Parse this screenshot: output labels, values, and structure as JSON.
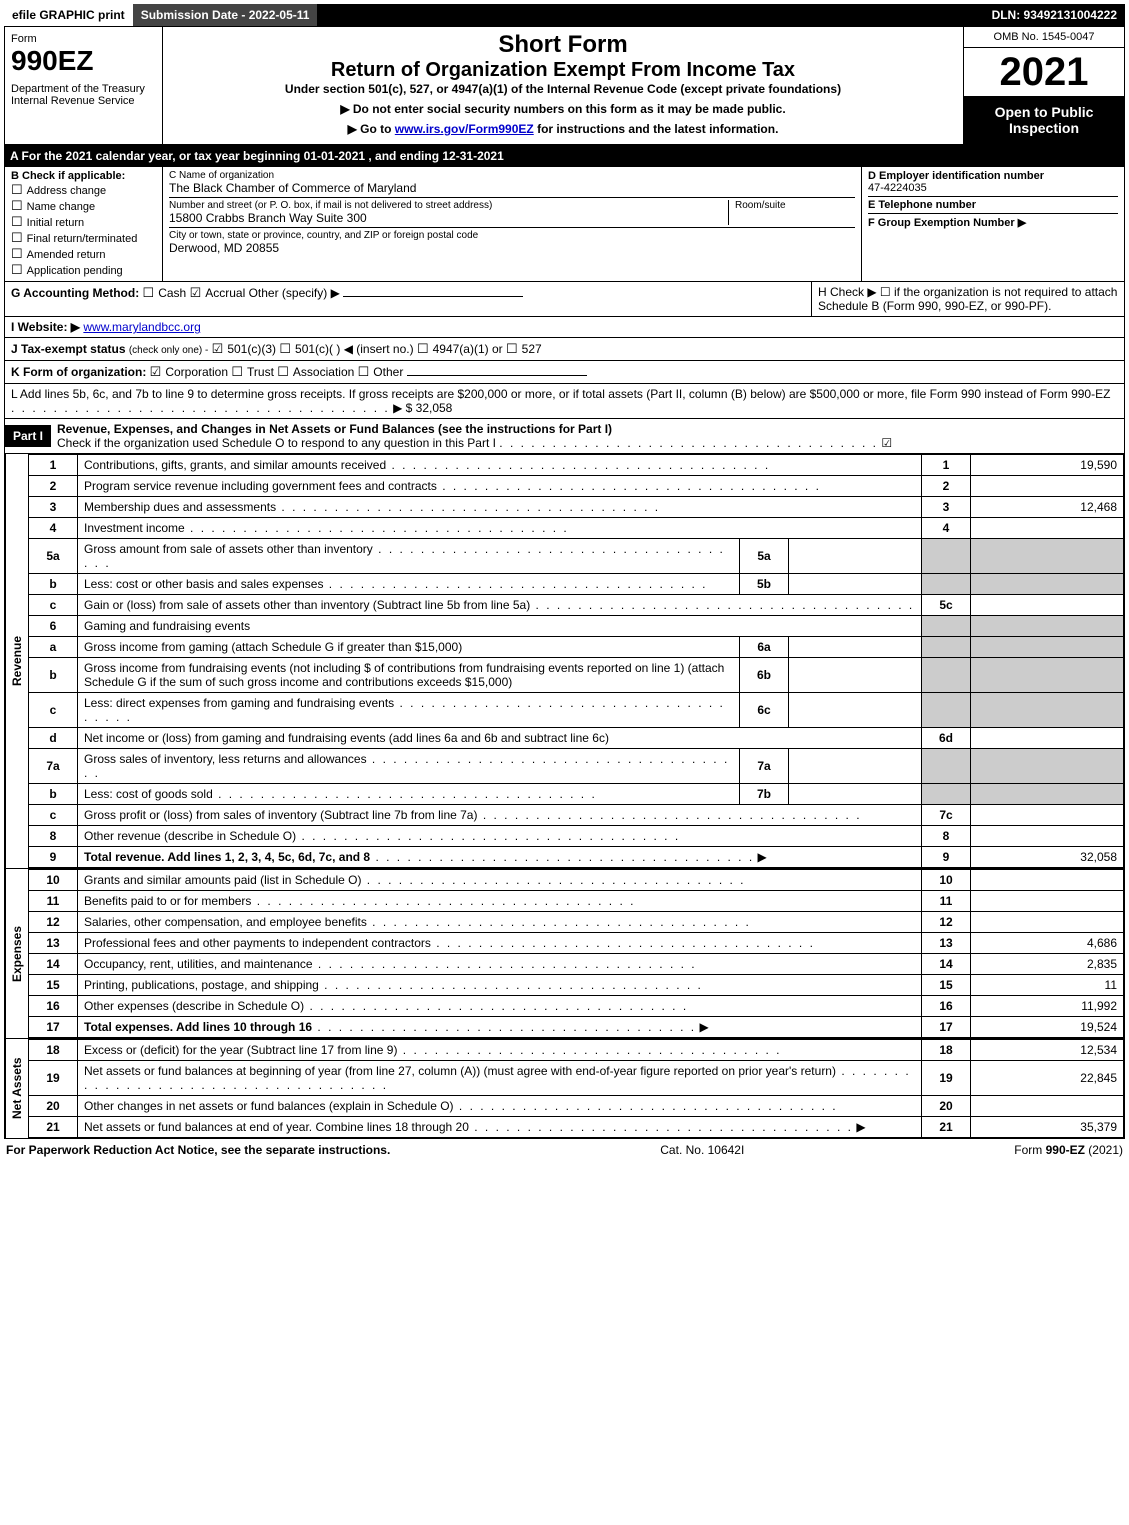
{
  "topbar": {
    "efile": "efile GRAPHIC print",
    "submission": "Submission Date - 2022-05-11",
    "dln": "DLN: 93492131004222"
  },
  "header": {
    "form_word": "Form",
    "form_number": "990EZ",
    "dept": "Department of the Treasury\nInternal Revenue Service",
    "short_form": "Short Form",
    "return_title": "Return of Organization Exempt From Income Tax",
    "subtitle": "Under section 501(c), 527, or 4947(a)(1) of the Internal Revenue Code (except private foundations)",
    "instr1": "▶ Do not enter social security numbers on this form as it may be made public.",
    "instr2_pre": "▶ Go to ",
    "instr2_link": "www.irs.gov/Form990EZ",
    "instr2_post": " for instructions and the latest information.",
    "omb": "OMB No. 1545-0047",
    "year": "2021",
    "open_public": "Open to Public Inspection"
  },
  "sectionA": "A  For the 2021 calendar year, or tax year beginning 01-01-2021 , and ending 12-31-2021",
  "boxB": {
    "title": "B  Check if applicable:",
    "items": [
      "Address change",
      "Name change",
      "Initial return",
      "Final return/terminated",
      "Amended return",
      "Application pending"
    ]
  },
  "boxC": {
    "name_label": "C Name of organization",
    "name": "The Black Chamber of Commerce of Maryland",
    "street_label": "Number and street (or P. O. box, if mail is not delivered to street address)",
    "room_label": "Room/suite",
    "street": "15800 Crabbs Branch Way Suite 300",
    "city_label": "City or town, state or province, country, and ZIP or foreign postal code",
    "city": "Derwood, MD  20855"
  },
  "boxD": {
    "ein_label": "D Employer identification number",
    "ein": "47-4224035",
    "phone_label": "E Telephone number",
    "phone": "",
    "group_label": "F Group Exemption Number  ▶",
    "group": ""
  },
  "lineG": {
    "label": "G Accounting Method:",
    "cash": "Cash",
    "accrual": "Accrual",
    "other": "Other (specify) ▶"
  },
  "lineH": {
    "label": "H  Check ▶  ☐  if the organization is not required to attach Schedule B (Form 990, 990-EZ, or 990-PF)."
  },
  "lineI": {
    "label": "I Website: ▶",
    "value": "www.marylandbcc.org"
  },
  "lineJ": {
    "label": "J Tax-exempt status",
    "sub": "(check only one) -",
    "c3": "501(c)(3)",
    "c": "501(c)(  ) ◀ (insert no.)",
    "a1": "4947(a)(1) or",
    "s527": "527"
  },
  "lineK": {
    "label": "K Form of organization:",
    "corp": "Corporation",
    "trust": "Trust",
    "assoc": "Association",
    "other": "Other"
  },
  "lineL": {
    "text": "L Add lines 5b, 6c, and 7b to line 9 to determine gross receipts. If gross receipts are $200,000 or more, or if total assets (Part II, column (B) below) are $500,000 or more, file Form 990 instead of Form 990-EZ",
    "amount_label": "▶ $",
    "amount": "32,058"
  },
  "part1": {
    "title": "Part I",
    "heading": "Revenue, Expenses, and Changes in Net Assets or Fund Balances (see the instructions for Part I)",
    "check_o": "Check if the organization used Schedule O to respond to any question in this Part I",
    "check_o_checked": "☑"
  },
  "sections": {
    "revenue_label": "Revenue",
    "expenses_label": "Expenses",
    "netassets_label": "Net Assets"
  },
  "lines": {
    "l1": {
      "num": "1",
      "label": "Contributions, gifts, grants, and similar amounts received",
      "box": "1",
      "amount": "19,590"
    },
    "l2": {
      "num": "2",
      "label": "Program service revenue including government fees and contracts",
      "box": "2",
      "amount": ""
    },
    "l3": {
      "num": "3",
      "label": "Membership dues and assessments",
      "box": "3",
      "amount": "12,468"
    },
    "l4": {
      "num": "4",
      "label": "Investment income",
      "box": "4",
      "amount": ""
    },
    "l5a": {
      "num": "5a",
      "label": "Gross amount from sale of assets other than inventory",
      "sub": "5a"
    },
    "l5b": {
      "num": "b",
      "label": "Less: cost or other basis and sales expenses",
      "sub": "5b"
    },
    "l5c": {
      "num": "c",
      "label": "Gain or (loss) from sale of assets other than inventory (Subtract line 5b from line 5a)",
      "box": "5c",
      "amount": ""
    },
    "l6": {
      "num": "6",
      "label": "Gaming and fundraising events"
    },
    "l6a": {
      "num": "a",
      "label": "Gross income from gaming (attach Schedule G if greater than $15,000)",
      "sub": "6a"
    },
    "l6b": {
      "num": "b",
      "label": "Gross income from fundraising events (not including $                of contributions from fundraising events reported on line 1) (attach Schedule G if the sum of such gross income and contributions exceeds $15,000)",
      "sub": "6b"
    },
    "l6c": {
      "num": "c",
      "label": "Less: direct expenses from gaming and fundraising events",
      "sub": "6c"
    },
    "l6d": {
      "num": "d",
      "label": "Net income or (loss) from gaming and fundraising events (add lines 6a and 6b and subtract line 6c)",
      "box": "6d",
      "amount": ""
    },
    "l7a": {
      "num": "7a",
      "label": "Gross sales of inventory, less returns and allowances",
      "sub": "7a"
    },
    "l7b": {
      "num": "b",
      "label": "Less: cost of goods sold",
      "sub": "7b"
    },
    "l7c": {
      "num": "c",
      "label": "Gross profit or (loss) from sales of inventory (Subtract line 7b from line 7a)",
      "box": "7c",
      "amount": ""
    },
    "l8": {
      "num": "8",
      "label": "Other revenue (describe in Schedule O)",
      "box": "8",
      "amount": ""
    },
    "l9": {
      "num": "9",
      "label": "Total revenue. Add lines 1, 2, 3, 4, 5c, 6d, 7c, and 8",
      "box": "9",
      "amount": "32,058",
      "arrow": "▶"
    },
    "l10": {
      "num": "10",
      "label": "Grants and similar amounts paid (list in Schedule O)",
      "box": "10",
      "amount": ""
    },
    "l11": {
      "num": "11",
      "label": "Benefits paid to or for members",
      "box": "11",
      "amount": ""
    },
    "l12": {
      "num": "12",
      "label": "Salaries, other compensation, and employee benefits",
      "box": "12",
      "amount": ""
    },
    "l13": {
      "num": "13",
      "label": "Professional fees and other payments to independent contractors",
      "box": "13",
      "amount": "4,686"
    },
    "l14": {
      "num": "14",
      "label": "Occupancy, rent, utilities, and maintenance",
      "box": "14",
      "amount": "2,835"
    },
    "l15": {
      "num": "15",
      "label": "Printing, publications, postage, and shipping",
      "box": "15",
      "amount": "11"
    },
    "l16": {
      "num": "16",
      "label": "Other expenses (describe in Schedule O)",
      "box": "16",
      "amount": "11,992"
    },
    "l17": {
      "num": "17",
      "label": "Total expenses. Add lines 10 through 16",
      "box": "17",
      "amount": "19,524",
      "arrow": "▶"
    },
    "l18": {
      "num": "18",
      "label": "Excess or (deficit) for the year (Subtract line 17 from line 9)",
      "box": "18",
      "amount": "12,534"
    },
    "l19": {
      "num": "19",
      "label": "Net assets or fund balances at beginning of year (from line 27, column (A)) (must agree with end-of-year figure reported on prior year's return)",
      "box": "19",
      "amount": "22,845"
    },
    "l20": {
      "num": "20",
      "label": "Other changes in net assets or fund balances (explain in Schedule O)",
      "box": "20",
      "amount": ""
    },
    "l21": {
      "num": "21",
      "label": "Net assets or fund balances at end of year. Combine lines 18 through 20",
      "box": "21",
      "amount": "35,379",
      "arrow": "▶"
    }
  },
  "footer": {
    "left": "For Paperwork Reduction Act Notice, see the separate instructions.",
    "center": "Cat. No. 10642I",
    "right": "Form 990-EZ (2021)"
  },
  "colors": {
    "black": "#000000",
    "white": "#ffffff",
    "shaded": "#cccccc",
    "darkgrey": "#444444",
    "link": "#0000cc"
  }
}
